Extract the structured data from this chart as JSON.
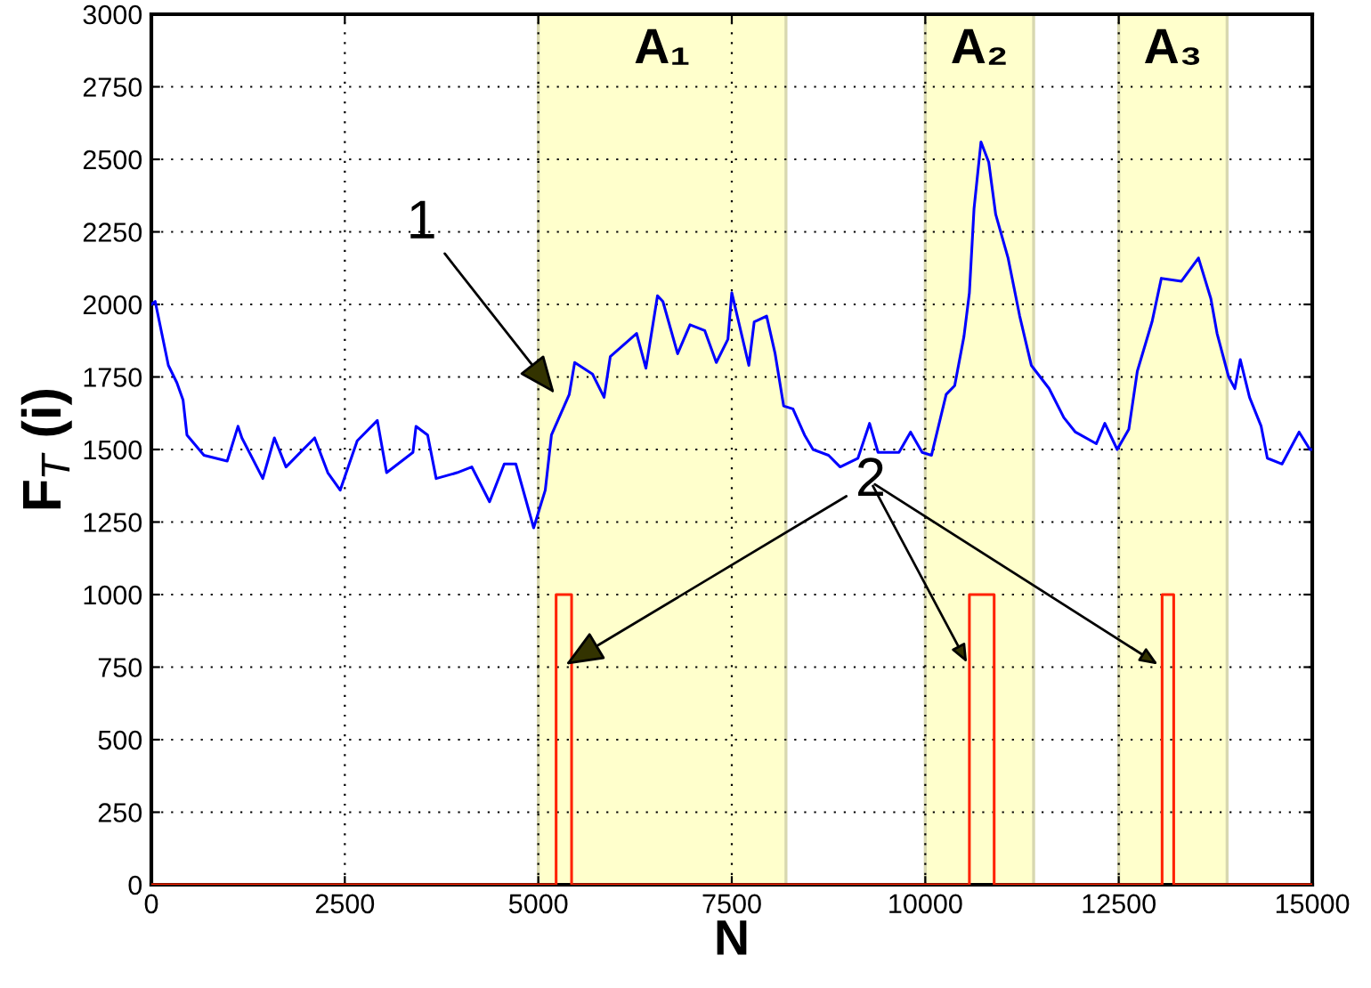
{
  "chart_data": {
    "type": "line",
    "xlabel": "N",
    "ylabel": "F$_{T}$ (i)",
    "xlim": [
      0,
      15000
    ],
    "ylim": [
      0,
      3000
    ],
    "xticks": [
      0,
      2500,
      5000,
      7500,
      10000,
      12500,
      15000
    ],
    "yticks": [
      0,
      250,
      500,
      750,
      1000,
      1250,
      1500,
      1750,
      2000,
      2250,
      2500,
      2750,
      3000
    ],
    "grid": true,
    "legend": false,
    "line_style": "solid",
    "marker": "none",
    "bands": [
      {
        "axis": "x",
        "from": 5000,
        "to": 8200,
        "label": "A₁",
        "color": "#ffffcc"
      },
      {
        "axis": "x",
        "from": 10000,
        "to": 11400,
        "label": "A₂",
        "color": "#ffffcc"
      },
      {
        "axis": "x",
        "from": 12500,
        "to": 13900,
        "label": "A₃",
        "color": "#ffffcc"
      }
    ],
    "series": [
      {
        "color": "#0000ff",
        "x": [
          0,
          50,
          220,
          330,
          410,
          460,
          680,
          980,
          1120,
          1170,
          1440,
          1590,
          1740,
          2110,
          2280,
          2440,
          2660,
          2920,
          3040,
          3380,
          3420,
          3570,
          3680,
          3950,
          4140,
          4370,
          4560,
          4710,
          4940,
          5090,
          5170,
          5400,
          5470,
          5700,
          5850,
          5930,
          6270,
          6390,
          6540,
          6610,
          6800,
          6960,
          7150,
          7300,
          7450,
          7500,
          7720,
          7790,
          7950,
          8060,
          8170,
          8290,
          8440,
          8550,
          8750,
          8900,
          9130,
          9280,
          9390,
          9660,
          9810,
          9960,
          10080,
          10270,
          10380,
          10500,
          10570,
          10630,
          10720,
          10820,
          10910,
          11070,
          11220,
          11370,
          11600,
          11790,
          11940,
          12210,
          12320,
          12480,
          12630,
          12740,
          12930,
          13050,
          13310,
          13530,
          13690,
          13770,
          13920,
          14000,
          14070,
          14190,
          14340,
          14420,
          14610,
          14830,
          14970,
          15000
        ],
        "values": [
          2000,
          2010,
          1790,
          1730,
          1670,
          1550,
          1480,
          1460,
          1580,
          1540,
          1400,
          1540,
          1440,
          1540,
          1420,
          1360,
          1530,
          1600,
          1420,
          1490,
          1580,
          1550,
          1400,
          1420,
          1440,
          1320,
          1450,
          1450,
          1230,
          1360,
          1550,
          1690,
          1800,
          1760,
          1680,
          1820,
          1900,
          1780,
          2030,
          2010,
          1830,
          1930,
          1910,
          1800,
          1880,
          2040,
          1790,
          1940,
          1960,
          1830,
          1650,
          1640,
          1550,
          1500,
          1480,
          1440,
          1470,
          1590,
          1490,
          1490,
          1560,
          1490,
          1480,
          1690,
          1720,
          1890,
          2040,
          2330,
          2560,
          2490,
          2310,
          2160,
          1960,
          1790,
          1710,
          1610,
          1560,
          1520,
          1590,
          1500,
          1570,
          1770,
          1940,
          2090,
          2080,
          2160,
          2020,
          1900,
          1750,
          1710,
          1810,
          1680,
          1580,
          1470,
          1450,
          1560,
          1500,
          1500
        ]
      },
      {
        "color": "#ff2200",
        "x": [
          0,
          5230,
          5230,
          5430,
          5430,
          10570,
          10570,
          10890,
          10890,
          13060,
          13060,
          13210,
          13210,
          15000
        ],
        "values": [
          0,
          0,
          1000,
          1000,
          0,
          0,
          1000,
          1000,
          0,
          0,
          1000,
          1000,
          0,
          0
        ]
      }
    ],
    "annotations": [
      {
        "text": "1",
        "x": 5250,
        "y": 1680
      },
      {
        "text": "2",
        "x": 5300,
        "y": 750
      }
    ]
  }
}
